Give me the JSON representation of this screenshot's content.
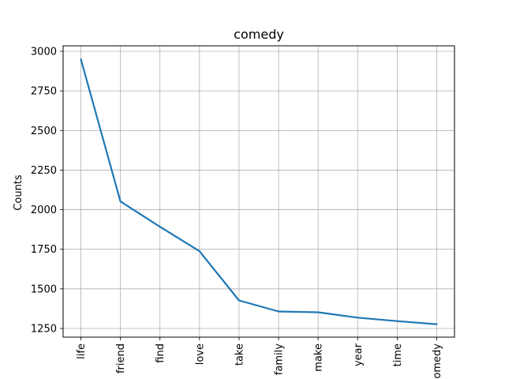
{
  "chart_data": {
    "type": "line",
    "title": "comedy",
    "xlabel": "",
    "ylabel": "Counts",
    "categories": [
      "life",
      "friend",
      "find",
      "love",
      "take",
      "family",
      "make",
      "year",
      "time",
      "comedy"
    ],
    "values": [
      2950,
      2052,
      1892,
      1738,
      1427,
      1357,
      1352,
      1318,
      1296,
      1277
    ],
    "ylim": [
      1195,
      3035
    ],
    "yticks": [
      1250,
      1500,
      1750,
      2000,
      2250,
      2500,
      2750,
      3000
    ],
    "grid": true,
    "line_color": "#1f77b4"
  }
}
